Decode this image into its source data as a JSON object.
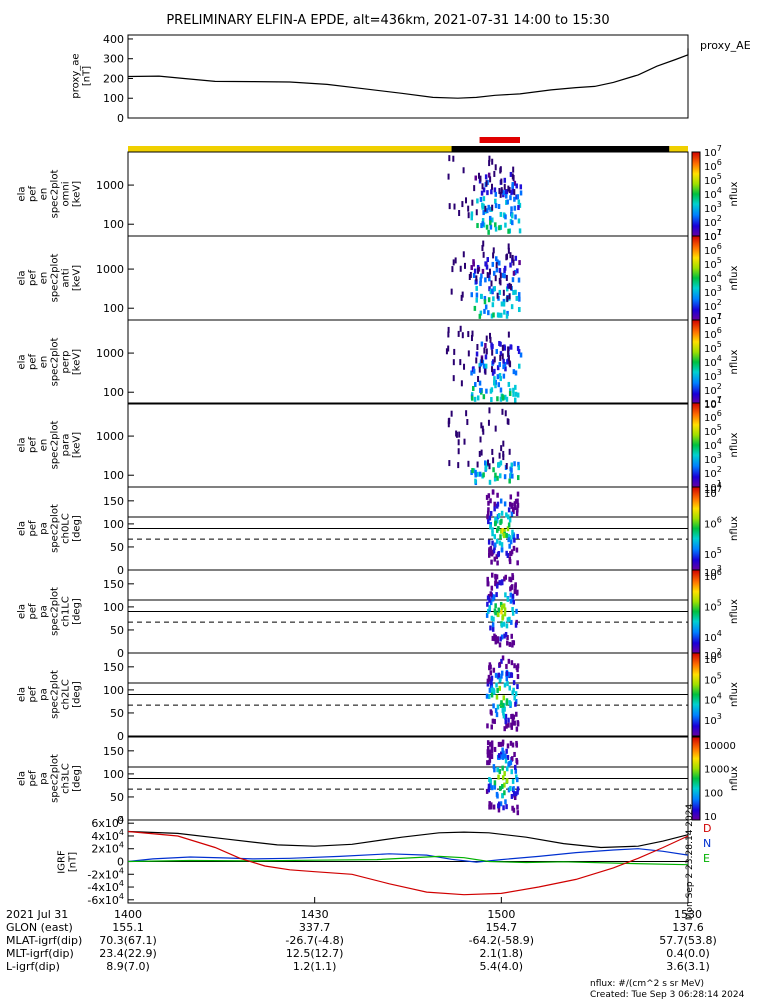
{
  "title": "PRELIMINARY ELFIN-A EPDE, alt=436km, 2021-07-31 14:00 to 15:30",
  "chart_data": {
    "type": "multi-panel",
    "time_range_minutes": [
      0,
      90
    ],
    "top_bar": {
      "segments": [
        {
          "start": 0,
          "end": 52,
          "color": "#f0d000"
        },
        {
          "start": 52,
          "end": 87,
          "color": "#000000"
        },
        {
          "start": 87,
          "end": 90,
          "color": "#f0d000"
        }
      ],
      "red_marker": [
        56.5,
        63
      ]
    },
    "proxy_ae": {
      "ylabel_lines": [
        "proxy_ae",
        "[nT]"
      ],
      "legend": "proxy_AE",
      "yticks": [
        "0",
        "100",
        "200",
        "300",
        "400"
      ],
      "ylim": [
        0,
        420
      ],
      "color": "#000000",
      "points": [
        [
          0,
          210
        ],
        [
          5,
          212
        ],
        [
          9,
          200
        ],
        [
          14,
          185
        ],
        [
          20,
          184
        ],
        [
          26,
          182
        ],
        [
          32,
          170
        ],
        [
          38,
          148
        ],
        [
          44,
          125
        ],
        [
          49,
          104
        ],
        [
          53,
          100
        ],
        [
          56,
          104
        ],
        [
          59,
          115
        ],
        [
          63,
          122
        ],
        [
          68,
          142
        ],
        [
          72,
          154
        ],
        [
          75,
          160
        ],
        [
          78,
          180
        ],
        [
          82,
          218
        ],
        [
          85,
          262
        ],
        [
          88,
          296
        ],
        [
          91,
          320
        ],
        [
          94,
          345
        ],
        [
          96,
          352
        ]
      ]
    },
    "energy_panels": [
      {
        "lines": [
          "ela",
          "pef",
          "en",
          "spec2plot",
          "omni",
          "[keV]"
        ],
        "cb_ticks": [
          "10",
          "10",
          "10",
          "10",
          "10",
          "10",
          "10"
        ],
        "cb_exp": [
          "1",
          "2",
          "3",
          "4",
          "5",
          "6",
          "7"
        ]
      },
      {
        "lines": [
          "ela",
          "pef",
          "en",
          "spec2plot",
          "anti",
          "[keV]"
        ],
        "cb_ticks": [
          "10",
          "10",
          "10",
          "10",
          "10",
          "10",
          "10"
        ],
        "cb_exp": [
          "1",
          "2",
          "3",
          "4",
          "5",
          "6",
          "7"
        ]
      },
      {
        "lines": [
          "ela",
          "pef",
          "en",
          "spec2plot",
          "perp",
          "[keV]"
        ],
        "cb_ticks": [
          "10",
          "10",
          "10",
          "10",
          "10",
          "10",
          "10"
        ],
        "cb_exp": [
          "1",
          "2",
          "3",
          "4",
          "5",
          "6",
          "7"
        ]
      },
      {
        "lines": [
          "ela",
          "pef",
          "en",
          "spec2plot",
          "para",
          "[keV]"
        ],
        "cb_ticks": [
          "10",
          "10",
          "10",
          "10",
          "10",
          "10",
          "10"
        ],
        "cb_exp": [
          "1",
          "2",
          "3",
          "4",
          "5",
          "6",
          "7"
        ]
      }
    ],
    "energy_yticks": [
      "100",
      "1000"
    ],
    "energy_ylim_log": [
      50,
      7000
    ],
    "pa_panels": [
      {
        "lines": [
          "ela",
          "pef",
          "pa",
          "spec2plot",
          "ch0LC",
          "[deg]"
        ],
        "cb_ticks": [
          "10",
          "10",
          "10"
        ],
        "cb_exp": [
          "5",
          "6",
          "7"
        ],
        "cb_sub": [
          "10",
          "4"
        ]
      },
      {
        "lines": [
          "ela",
          "pef",
          "pa",
          "spec2plot",
          "ch1LC",
          "[deg]"
        ],
        "cb_ticks": [
          "10",
          "10",
          "10"
        ],
        "cb_exp": [
          "4",
          "5",
          "6"
        ],
        "cb_sub": [
          "10",
          "3"
        ]
      },
      {
        "lines": [
          "ela",
          "pef",
          "pa",
          "spec2plot",
          "ch2LC",
          "[deg]"
        ],
        "cb_ticks": [
          "10",
          "10",
          "10",
          "10"
        ],
        "cb_exp": [
          "3",
          "4",
          "5",
          "6"
        ],
        "cb_sub": [
          "10",
          "2"
        ]
      },
      {
        "lines": [
          "ela",
          "pef",
          "pa",
          "spec2plot",
          "ch3LC",
          "[deg]"
        ],
        "cb_plain": [
          "10",
          "100",
          "1000",
          "10000"
        ]
      }
    ],
    "pa_yticks": [
      "0",
      "50",
      "100",
      "150"
    ],
    "pa_ylim": [
      0,
      180
    ],
    "pa_solid_lines": [
      90,
      115
    ],
    "pa_dashed_line": 67,
    "nflux_label": "nflux",
    "igrf": {
      "ylabel_lines": [
        "IGRF",
        "[nT]"
      ],
      "yticks": [
        "-6x10",
        "-4x10",
        "-2x10",
        "0",
        "2x10",
        "4x10",
        "6x10"
      ],
      "ytick_exp": "4",
      "ylim": [
        -65000,
        65000
      ],
      "legend": [
        {
          "name": "D",
          "color": "#d00000"
        },
        {
          "name": "N",
          "color": "#0030d0"
        },
        {
          "name": "E",
          "color": "#00b000"
        }
      ],
      "black": [
        [
          0,
          47000
        ],
        [
          8,
          44000
        ],
        [
          16,
          35000
        ],
        [
          24,
          26000
        ],
        [
          30,
          24000
        ],
        [
          36,
          27000
        ],
        [
          44,
          38000
        ],
        [
          50,
          45000
        ],
        [
          54,
          46000
        ],
        [
          58,
          45000
        ],
        [
          64,
          38000
        ],
        [
          70,
          28000
        ],
        [
          76,
          22000
        ],
        [
          82,
          24000
        ],
        [
          86,
          32000
        ],
        [
          90,
          42000
        ]
      ],
      "red": [
        [
          0,
          47000
        ],
        [
          8,
          40000
        ],
        [
          14,
          22000
        ],
        [
          18,
          5000
        ],
        [
          22,
          -7000
        ],
        [
          26,
          -13000
        ],
        [
          30,
          -16000
        ],
        [
          36,
          -20000
        ],
        [
          42,
          -35000
        ],
        [
          48,
          -48000
        ],
        [
          54,
          -52000
        ],
        [
          60,
          -50000
        ],
        [
          66,
          -40000
        ],
        [
          72,
          -28000
        ],
        [
          78,
          -10000
        ],
        [
          82,
          5000
        ],
        [
          86,
          22000
        ],
        [
          90,
          40000
        ]
      ],
      "blue": [
        [
          0,
          0
        ],
        [
          4,
          4000
        ],
        [
          10,
          7000
        ],
        [
          16,
          5500
        ],
        [
          20,
          4000
        ],
        [
          26,
          5000
        ],
        [
          34,
          8000
        ],
        [
          42,
          12000
        ],
        [
          48,
          10000
        ],
        [
          52,
          3500
        ],
        [
          56,
          -1000
        ],
        [
          60,
          3000
        ],
        [
          66,
          8000
        ],
        [
          72,
          14000
        ],
        [
          78,
          18000
        ],
        [
          82,
          20000
        ],
        [
          86,
          16000
        ],
        [
          90,
          10000
        ]
      ],
      "green": [
        [
          0,
          0
        ],
        [
          10,
          1500
        ],
        [
          20,
          1000
        ],
        [
          30,
          2000
        ],
        [
          40,
          3000
        ],
        [
          50,
          8000
        ],
        [
          54,
          6000
        ],
        [
          58,
          0
        ],
        [
          64,
          -1500
        ],
        [
          70,
          -500
        ],
        [
          80,
          -3000
        ],
        [
          90,
          -5000
        ]
      ],
      "side_note": "Mon Sep  2 23:28:14 2024"
    },
    "x_axis": {
      "tick_minutes": [
        0,
        30,
        60,
        90
      ],
      "tick_labels": [
        "1400",
        "1430",
        "1500",
        "1530"
      ],
      "date": "2021 Jul 31"
    },
    "footer_rows": [
      {
        "label": "GLON (east)",
        "values": [
          "155.1",
          "337.7",
          "154.7",
          "137.6"
        ]
      },
      {
        "label": "MLAT-igrf(dip)",
        "values": [
          "70.3(67.1)",
          "-26.7(-4.8)",
          "-64.2(-58.9)",
          "57.7(53.8)"
        ]
      },
      {
        "label": "MLT-igrf(dip)",
        "values": [
          "23.4(22.9)",
          "12.5(12.7)",
          "2.1(1.8)",
          "0.4(0.0)"
        ]
      },
      {
        "label": "L-igrf(dip)",
        "values": [
          "8.9(7.0)",
          "1.2(1.1)",
          "5.4(4.0)",
          "3.6(3.1)"
        ]
      }
    ],
    "units_note": "nflux: #/(cm^2 s sr MeV)",
    "created": "Created: Tue Sep  3 06:28:14 2024"
  }
}
